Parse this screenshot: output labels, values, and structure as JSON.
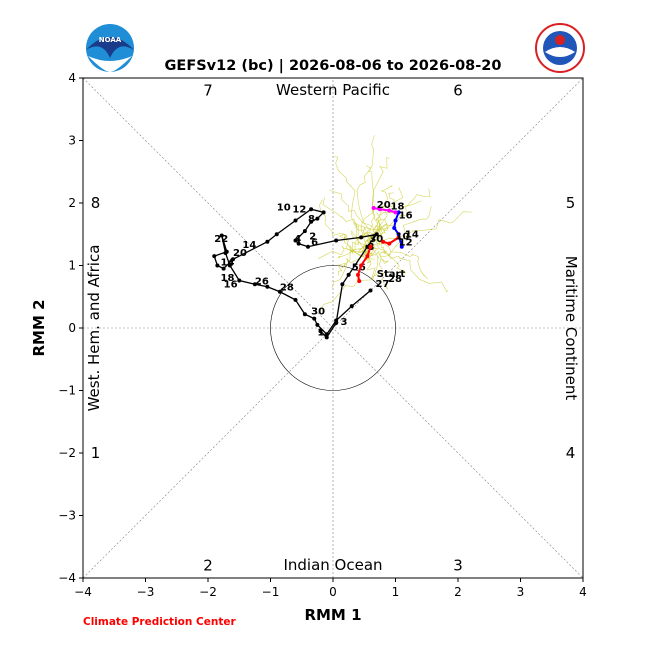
{
  "chart_data": {
    "type": "line",
    "title": "GEFSv12 (bc) | 2026-08-06 to 2026-08-20",
    "xlabel": "RMM 1",
    "ylabel": "RMM 2",
    "xlim": [
      -4,
      4
    ],
    "ylim": [
      -4,
      4
    ],
    "xticks": [
      "−4",
      "−3",
      "−2",
      "−1",
      "0",
      "1",
      "2",
      "3",
      "4"
    ],
    "yticks": [
      "−4",
      "−3",
      "−2",
      "−1",
      "0",
      "1",
      "2",
      "3",
      "4"
    ],
    "regions": {
      "top": "Western Pacific",
      "bottom": "Indian Ocean",
      "left": "West. Hem. and Africa",
      "right": "Maritime Continent"
    },
    "phases": [
      {
        "label": "1",
        "x": -3.8,
        "y": -2.0
      },
      {
        "label": "2",
        "x": -2.0,
        "y": -3.8
      },
      {
        "label": "3",
        "x": 2.0,
        "y": -3.8
      },
      {
        "label": "4",
        "x": 3.8,
        "y": -2.0
      },
      {
        "label": "5",
        "x": 3.8,
        "y": 2.0
      },
      {
        "label": "6",
        "x": 2.0,
        "y": 3.8
      },
      {
        "label": "7",
        "x": -2.0,
        "y": 3.8
      },
      {
        "label": "8",
        "x": -3.8,
        "y": 2.0
      }
    ],
    "credit": "Climate Prediction Center",
    "observed": {
      "name": "observed",
      "color": "#000000",
      "x": [
        -0.2,
        -0.1,
        0.05,
        0.15,
        0.25,
        0.55,
        0.7,
        0.45,
        0.05,
        -0.4,
        -0.55,
        -0.6,
        -0.45,
        -0.35,
        -0.25,
        -0.15,
        -0.35,
        -0.6,
        -0.9,
        -1.05,
        -1.6,
        -1.75,
        -1.85,
        -1.9,
        -1.7,
        -1.78,
        -1.72,
        -1.65,
        -1.5,
        -1.25,
        -1.05,
        -0.85,
        -0.6,
        -0.45,
        -0.3,
        -0.25,
        -0.1,
        0.05,
        0.3,
        0.6
      ],
      "y": [
        -0.05,
        -0.15,
        0.08,
        0.7,
        0.85,
        1.3,
        1.5,
        1.45,
        1.4,
        1.3,
        1.35,
        1.4,
        1.55,
        1.7,
        1.75,
        1.85,
        1.9,
        1.72,
        1.5,
        1.38,
        1.1,
        0.95,
        1.0,
        1.15,
        1.22,
        1.48,
        1.2,
        1.0,
        0.76,
        0.7,
        0.66,
        0.58,
        0.45,
        0.22,
        0.15,
        0.05,
        -0.1,
        0.12,
        0.35,
        0.6
      ],
      "labels": [
        {
          "text": "1",
          "x": -0.25,
          "y": -0.12
        },
        {
          "text": "3",
          "x": 0.12,
          "y": 0.05
        },
        {
          "text": "30",
          "x": -0.35,
          "y": 0.22
        },
        {
          "text": "28",
          "x": -0.85,
          "y": 0.6
        },
        {
          "text": "26",
          "x": -1.25,
          "y": 0.7
        },
        {
          "text": "18",
          "x": -1.8,
          "y": 0.75
        },
        {
          "text": "16",
          "x": -1.75,
          "y": 0.65
        },
        {
          "text": "14",
          "x": -1.8,
          "y": 1.0
        },
        {
          "text": "20",
          "x": -1.6,
          "y": 1.15
        },
        {
          "text": "22",
          "x": -1.9,
          "y": 1.38
        },
        {
          "text": "14",
          "x": -1.45,
          "y": 1.28
        },
        {
          "text": "10",
          "x": -0.9,
          "y": 1.88
        },
        {
          "text": "12",
          "x": -0.65,
          "y": 1.85
        },
        {
          "text": "8",
          "x": -0.4,
          "y": 1.7
        },
        {
          "text": "2",
          "x": -0.38,
          "y": 1.42
        },
        {
          "text": "4",
          "x": -0.62,
          "y": 1.38
        },
        {
          "text": "6",
          "x": -0.35,
          "y": 1.32
        },
        {
          "text": "30",
          "x": 0.58,
          "y": 1.38
        },
        {
          "text": "8",
          "x": 0.55,
          "y": 1.25
        },
        {
          "text": "56",
          "x": 0.3,
          "y": 0.92
        },
        {
          "text": "Start",
          "x": 0.7,
          "y": 0.82
        },
        {
          "text": "27",
          "x": 0.68,
          "y": 0.66
        },
        {
          "text": "28",
          "x": 0.88,
          "y": 0.74
        }
      ]
    },
    "forecast": {
      "name": "forecast",
      "segments": [
        {
          "color": "#ff0000",
          "x": [
            0.6,
            0.55,
            0.45,
            0.4,
            0.42
          ],
          "y": [
            1.3,
            1.15,
            1.0,
            0.85,
            0.75
          ]
        },
        {
          "color": "#ff0000",
          "x": [
            1.05,
            0.9,
            0.8
          ],
          "y": [
            1.45,
            1.35,
            1.38
          ]
        },
        {
          "color": "#0000ff",
          "x": [
            1.05,
            1.0,
            0.98,
            1.05,
            1.1
          ],
          "y": [
            1.85,
            1.72,
            1.6,
            1.5,
            1.3
          ]
        },
        {
          "color": "#ff00ff",
          "x": [
            0.65,
            0.75,
            0.9,
            1.0
          ],
          "y": [
            1.92,
            1.9,
            1.88,
            1.85
          ]
        }
      ],
      "labels": [
        {
          "text": "20",
          "x": 0.7,
          "y": 1.92
        },
        {
          "text": "18",
          "x": 0.92,
          "y": 1.9
        },
        {
          "text": "16",
          "x": 1.05,
          "y": 1.75
        },
        {
          "text": "14",
          "x": 1.15,
          "y": 1.45
        },
        {
          "text": "12",
          "x": 1.05,
          "y": 1.32
        },
        {
          "text": "10",
          "x": 1.0,
          "y": 1.42
        }
      ]
    },
    "ensemble_color": "#cccc33",
    "axis_color": "#000000",
    "guide_color": "#808080"
  }
}
